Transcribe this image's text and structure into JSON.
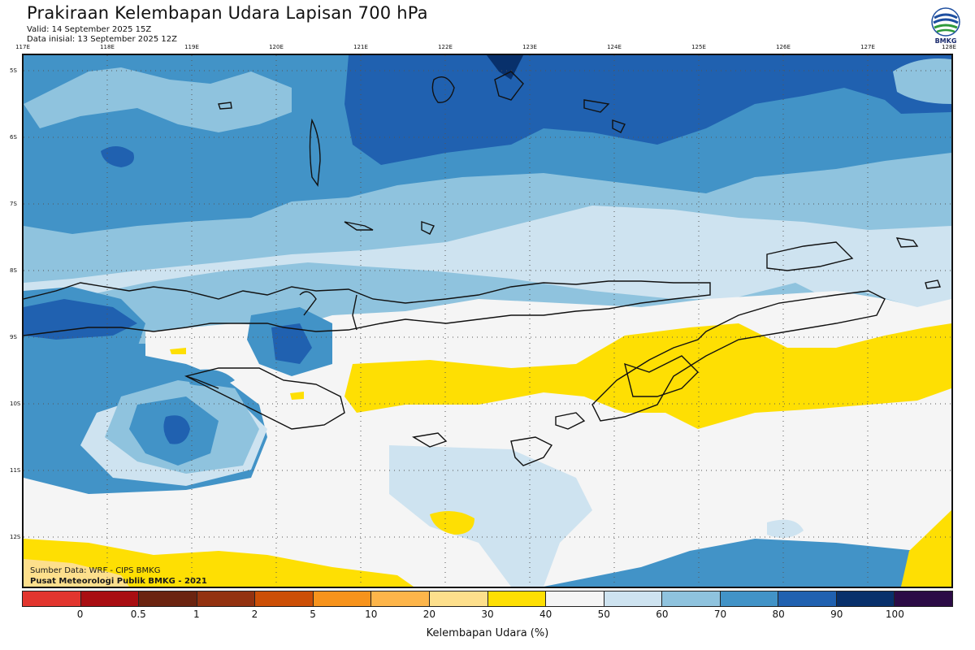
{
  "header": {
    "title": "Prakiraan Kelembapan Udara Lapisan 700 hPa",
    "valid": "Valid: 14 September 2025 15Z",
    "init": "Data inisial: 13 September 2025 12Z"
  },
  "logo": {
    "text": "BMKG",
    "icon": "bmkg-logo-icon"
  },
  "map": {
    "lon_labels": [
      "117E",
      "118E",
      "119E",
      "120E",
      "121E",
      "122E",
      "123E",
      "124E",
      "125E",
      "126E",
      "127E",
      "128E"
    ],
    "lat_labels": [
      "5S",
      "6S",
      "7S",
      "8S",
      "9S",
      "10S",
      "11S",
      "12S"
    ],
    "credit_source": "Sumber Data: WRF - CIPS BMKG",
    "credit_center": "Pusat Meteorologi Publik BMKG - 2021",
    "grid": true
  },
  "colorbar": {
    "ticks": [
      "0",
      "0.5",
      "1",
      "2",
      "5",
      "10",
      "20",
      "30",
      "40",
      "50",
      "60",
      "70",
      "80",
      "90",
      "100"
    ],
    "colors": [
      "#e2352e",
      "#a90e12",
      "#6b2410",
      "#933210",
      "#cc4f06",
      "#f7931c",
      "#fdb54a",
      "#fddf8c",
      "#fedf03",
      "#f5f5f5",
      "#cee3f0",
      "#8fc3de",
      "#4293c7",
      "#2061b0",
      "#08306b",
      "#2c0b46"
    ],
    "label": "Kelembapan Udara (%)"
  },
  "legend_colors": {
    "lt30": "#fedf03",
    "r40_50": "#f5f5f5",
    "r50_60": "#cee3f0",
    "r60_70": "#8fc3de",
    "r70_80": "#4293c7",
    "r80_90": "#2061b0",
    "r90_100": "#08306b"
  }
}
